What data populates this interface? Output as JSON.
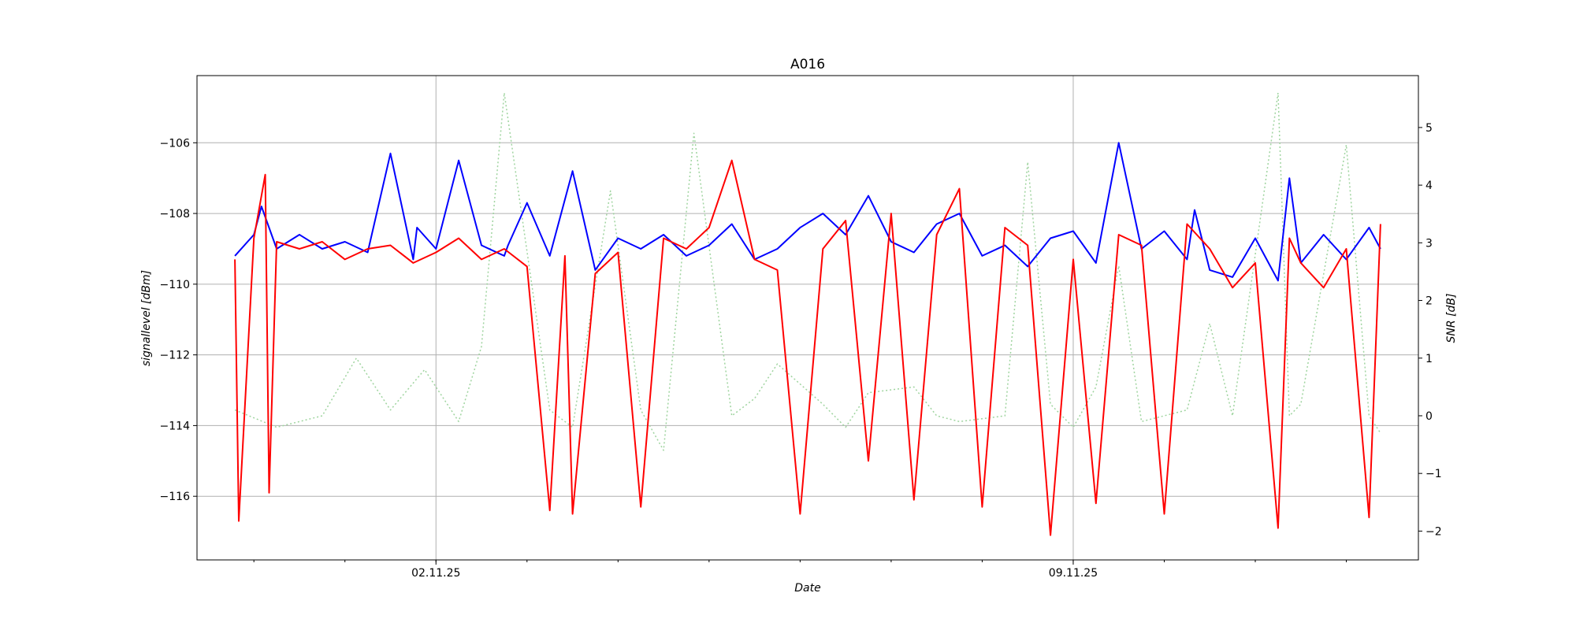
{
  "chart_data": {
    "type": "line",
    "title": "A016",
    "xlabel": "Date",
    "ylabel": "signallevel [dBm]",
    "y2label": "SNR [dB]",
    "grid": true,
    "x_ticks": [
      "02.11.25",
      "09.11.25"
    ],
    "x_range": [
      "2025-10-30 09:00",
      "2025-11-12 19:00"
    ],
    "ylim": [
      -117.8,
      -104.1
    ],
    "y_ticks": [
      -106,
      -108,
      -110,
      -112,
      -114,
      -116
    ],
    "y2lim": [
      -2.5,
      5.9
    ],
    "y2_ticks": [
      5,
      4,
      3,
      2,
      1,
      0,
      -1,
      -2
    ],
    "series_colors": [
      "#0000ff",
      "#ff0000",
      "#9fd49f"
    ],
    "series": [
      {
        "axis": "left",
        "color": "#0000ff",
        "style": "solid",
        "x": [
          "2025-10-30 19:00",
          "2025-10-31 00:00",
          "2025-10-31 02:00",
          "2025-10-31 06:00",
          "2025-10-31 12:00",
          "2025-10-31 18:00",
          "2025-11-01 00:00",
          "2025-11-01 06:00",
          "2025-11-01 12:00",
          "2025-11-01 18:00",
          "2025-11-01 19:00",
          "2025-11-02 00:00",
          "2025-11-02 06:00",
          "2025-11-02 12:00",
          "2025-11-02 18:00",
          "2025-11-02 19:00",
          "2025-11-03 00:00",
          "2025-11-03 06:00",
          "2025-11-03 12:00",
          "2025-11-03 18:00",
          "2025-11-04 00:00",
          "2025-11-04 06:00",
          "2025-11-04 12:00",
          "2025-11-04 18:00",
          "2025-11-05 00:00",
          "2025-11-05 06:00",
          "2025-11-05 12:00",
          "2025-11-05 18:00",
          "2025-11-06 00:00",
          "2025-11-06 06:00",
          "2025-11-06 12:00",
          "2025-11-06 18:00",
          "2025-11-07 00:00",
          "2025-11-07 06:00",
          "2025-11-07 12:00",
          "2025-11-07 18:00",
          "2025-11-08 00:00",
          "2025-11-08 06:00",
          "2025-11-08 12:00",
          "2025-11-08 18:00",
          "2025-11-09 00:00",
          "2025-11-09 06:00",
          "2025-11-09 12:00",
          "2025-11-09 18:00",
          "2025-11-10 00:00",
          "2025-11-10 06:00",
          "2025-11-10 08:00",
          "2025-11-10 12:00",
          "2025-11-10 18:00",
          "2025-11-11 00:00",
          "2025-11-11 06:00",
          "2025-11-11 09:00",
          "2025-11-11 12:00",
          "2025-11-11 18:00",
          "2025-11-12 00:00",
          "2025-11-12 06:00",
          "2025-11-12 09:00"
        ],
        "y": [
          -109.2,
          -108.6,
          -107.8,
          -109.0,
          -108.6,
          -109.0,
          -108.8,
          -109.1,
          -106.3,
          -109.3,
          -108.4,
          -109.0,
          -106.5,
          -108.9,
          -109.2,
          -108.9,
          -107.7,
          -109.2,
          -106.8,
          -109.6,
          -108.7,
          -109.0,
          -108.6,
          -109.2,
          -108.9,
          -108.3,
          -109.3,
          -109.0,
          -108.4,
          -108.0,
          -108.6,
          -107.5,
          -108.8,
          -109.1,
          -108.3,
          -108.0,
          -109.2,
          -108.9,
          -109.5,
          -108.7,
          -108.5,
          -109.4,
          -106.0,
          -109.0,
          -108.5,
          -109.3,
          -107.9,
          -109.6,
          -109.8,
          -108.7,
          -109.9,
          -107.0,
          -109.4,
          -108.6,
          -109.3,
          -108.4,
          -109.0
        ]
      },
      {
        "axis": "left",
        "color": "#ff0000",
        "style": "solid",
        "x": [
          "2025-10-30 19:00",
          "2025-10-30 20:00",
          "2025-10-31 00:00",
          "2025-10-31 03:00",
          "2025-10-31 04:00",
          "2025-10-31 06:00",
          "2025-10-31 12:00",
          "2025-10-31 18:00",
          "2025-11-01 00:00",
          "2025-11-01 06:00",
          "2025-11-01 12:00",
          "2025-11-01 18:00",
          "2025-11-02 00:00",
          "2025-11-02 06:00",
          "2025-11-02 12:00",
          "2025-11-02 18:00",
          "2025-11-03 00:00",
          "2025-11-03 06:00",
          "2025-11-03 10:00",
          "2025-11-03 12:00",
          "2025-11-03 18:00",
          "2025-11-04 00:00",
          "2025-11-04 06:00",
          "2025-11-04 12:00",
          "2025-11-04 18:00",
          "2025-11-05 00:00",
          "2025-11-05 06:00",
          "2025-11-05 12:00",
          "2025-11-05 18:00",
          "2025-11-06 00:00",
          "2025-11-06 06:00",
          "2025-11-06 12:00",
          "2025-11-06 18:00",
          "2025-11-07 00:00",
          "2025-11-07 06:00",
          "2025-11-07 12:00",
          "2025-11-07 18:00",
          "2025-11-08 00:00",
          "2025-11-08 06:00",
          "2025-11-08 12:00",
          "2025-11-08 18:00",
          "2025-11-09 00:00",
          "2025-11-09 06:00",
          "2025-11-09 12:00",
          "2025-11-09 18:00",
          "2025-11-10 00:00",
          "2025-11-10 06:00",
          "2025-11-10 12:00",
          "2025-11-10 18:00",
          "2025-11-11 00:00",
          "2025-11-11 06:00",
          "2025-11-11 09:00",
          "2025-11-11 12:00",
          "2025-11-11 18:00",
          "2025-11-12 00:00",
          "2025-11-12 06:00",
          "2025-11-12 09:00"
        ],
        "y": [
          -109.3,
          -116.7,
          -108.7,
          -106.9,
          -115.9,
          -108.8,
          -109.0,
          -108.8,
          -109.3,
          -109.0,
          -108.9,
          -109.4,
          -109.1,
          -108.7,
          -109.3,
          -109.0,
          -109.5,
          -116.4,
          -109.2,
          -116.5,
          -109.7,
          -109.1,
          -116.3,
          -108.7,
          -109.0,
          -108.4,
          -106.5,
          -109.3,
          -109.6,
          -116.5,
          -109.0,
          -108.2,
          -115.0,
          -108.0,
          -116.1,
          -108.6,
          -107.3,
          -116.3,
          -108.4,
          -108.9,
          -117.1,
          -109.3,
          -116.2,
          -108.6,
          -108.9,
          -116.5,
          -108.3,
          -109.0,
          -110.1,
          -109.4,
          -116.9,
          -108.7,
          -109.4,
          -110.1,
          -109.0,
          -116.6,
          -108.3
        ]
      },
      {
        "axis": "right",
        "color": "#9fd49f",
        "style": "dotted",
        "x": [
          "2025-10-30 19:00",
          "2025-10-31 06:00",
          "2025-10-31 18:00",
          "2025-11-01 03:00",
          "2025-11-01 12:00",
          "2025-11-01 21:00",
          "2025-11-02 06:00",
          "2025-11-02 12:00",
          "2025-11-02 18:00",
          "2025-11-03 06:00",
          "2025-11-03 08:00",
          "2025-11-03 12:00",
          "2025-11-03 22:00",
          "2025-11-04 06:00",
          "2025-11-04 12:00",
          "2025-11-04 20:00",
          "2025-11-05 06:00",
          "2025-11-05 12:00",
          "2025-11-05 18:00",
          "2025-11-06 06:00",
          "2025-11-06 12:00",
          "2025-11-06 18:00",
          "2025-11-07 06:00",
          "2025-11-07 12:00",
          "2025-11-07 18:00",
          "2025-11-08 06:00",
          "2025-11-08 12:00",
          "2025-11-08 18:00",
          "2025-11-09 00:00",
          "2025-11-09 06:00",
          "2025-11-09 12:00",
          "2025-11-09 18:00",
          "2025-11-10 06:00",
          "2025-11-10 12:00",
          "2025-11-10 18:00",
          "2025-11-11 06:00",
          "2025-11-11 09:00",
          "2025-11-11 12:00",
          "2025-11-12 00:00",
          "2025-11-12 06:00",
          "2025-11-12 09:00"
        ],
        "y": [
          0.1,
          -0.2,
          0.0,
          1.0,
          0.1,
          0.8,
          -0.1,
          1.2,
          5.6,
          0.1,
          0.0,
          -0.2,
          3.9,
          0.1,
          -0.6,
          4.9,
          0.0,
          0.3,
          0.9,
          0.2,
          -0.2,
          0.4,
          0.5,
          0.0,
          -0.1,
          0.0,
          4.4,
          0.2,
          -0.2,
          0.5,
          2.6,
          -0.1,
          0.1,
          1.6,
          0.0,
          5.6,
          0.0,
          0.2,
          4.7,
          0.0,
          -0.3
        ]
      }
    ]
  }
}
